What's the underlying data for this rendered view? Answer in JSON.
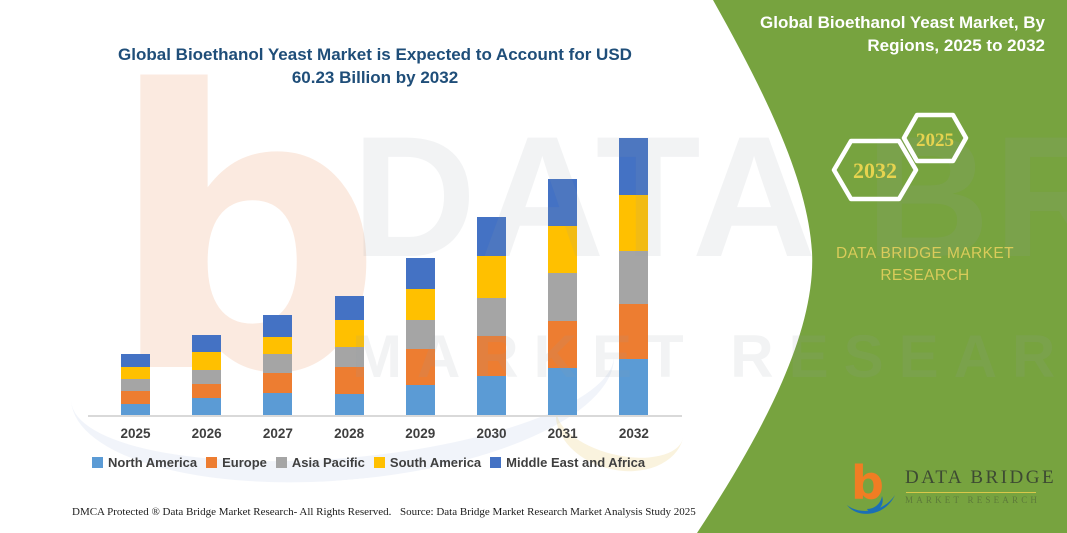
{
  "colors": {
    "panel_green": "#77A33F",
    "title_blue": "#1F4E79",
    "badge_yellow": "#E6D34F",
    "brand_yellow": "#D9CB5A",
    "hex_stroke": "#FFFFFF",
    "logo_orange": "#F07D23",
    "logo_blue": "#1B6FB5"
  },
  "chart_data": {
    "type": "bar",
    "stacked": true,
    "title": "Global Bioethanol Yeast Market is Expected to Account for USD 60.23 Billion by 2032",
    "value_unit": "USD Billion",
    "total_2032": 60.23,
    "categories": [
      "2025",
      "2026",
      "2027",
      "2028",
      "2029",
      "2030",
      "2031",
      "2032"
    ],
    "series": [
      {
        "name": "North America",
        "color": "#5B9BD5",
        "values": [
          2.5,
          3.6,
          4.8,
          4.6,
          6.5,
          8.4,
          10.3,
          12.1
        ]
      },
      {
        "name": "Europe",
        "color": "#ED7D31",
        "values": [
          2.7,
          3.1,
          4.3,
          5.8,
          7.8,
          8.7,
          10.2,
          12.0
        ]
      },
      {
        "name": "Asia Pacific",
        "color": "#A5A5A5",
        "values": [
          2.6,
          3.0,
          4.2,
          4.4,
          6.4,
          8.3,
          10.4,
          11.5
        ]
      },
      {
        "name": "South America",
        "color": "#FFC000",
        "values": [
          2.7,
          3.9,
          3.6,
          5.8,
          6.8,
          9.2,
          10.3,
          12.2
        ]
      },
      {
        "name": "Middle East and Africa",
        "color": "#4472C4",
        "values": [
          2.7,
          3.7,
          4.9,
          5.2,
          6.7,
          8.4,
          10.2,
          12.43
        ]
      }
    ],
    "totals": [
      13.2,
      17.3,
      21.8,
      25.8,
      34.2,
      43.0,
      51.4,
      60.23
    ],
    "xlabel": "",
    "ylabel": "",
    "y_axis": "hidden",
    "gridlines": false,
    "legend_position": "bottom"
  },
  "side_panel": {
    "heading": "Global Bioethanol Yeast Market, By Regions, 2025 to 2032",
    "badges": [
      {
        "year": "2032"
      },
      {
        "year": "2025"
      }
    ],
    "brand_text": "DATA BRIDGE MARKET RESEARCH"
  },
  "logo": {
    "letter": "b",
    "wordmark": "DATA BRIDGE",
    "subtext": "MARKET RESEARCH"
  },
  "watermarks": {
    "logo_letter": "b",
    "line1": "DATA BRIDGE",
    "line2": "MARKET RESEARCH"
  },
  "footer": {
    "dmca": "DMCA Protected ® Data Bridge Market Research-  All Rights Reserved.",
    "source": "Source: Data Bridge Market Research  Market Analysis Study 2025"
  }
}
